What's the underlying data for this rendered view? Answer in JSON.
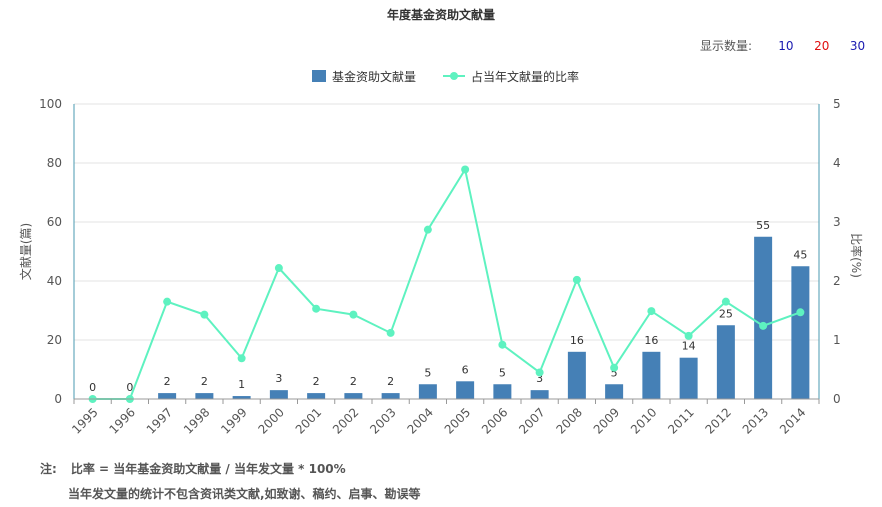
{
  "title": "年度基金资助文献量",
  "count_selector": {
    "label": "显示数量:",
    "options": [
      {
        "label": "10",
        "color": "#1a1ab0"
      },
      {
        "label": "20",
        "color": "#e01010"
      },
      {
        "label": "30",
        "color": "#1a1ab0"
      }
    ]
  },
  "notes": {
    "prefix": "注:",
    "line1": "比率 = 当年基金资助文献量 / 当年发文量 * 100%",
    "line2": "当年发文量的统计不包含资讯类文献,如致谢、稿约、启事、勘误等"
  },
  "chart_data": {
    "type": "bar",
    "categories": [
      "1995",
      "1996",
      "1997",
      "1998",
      "1999",
      "2000",
      "2001",
      "2002",
      "2003",
      "2004",
      "2005",
      "2006",
      "2007",
      "2008",
      "2009",
      "2010",
      "2011",
      "2012",
      "2013",
      "2014"
    ],
    "series": [
      {
        "name": "基金资助文献量",
        "kind": "bar",
        "axis": "left",
        "color": "#4580b6",
        "values": [
          0,
          0,
          2,
          2,
          1,
          3,
          2,
          2,
          2,
          5,
          6,
          5,
          3,
          16,
          5,
          16,
          14,
          25,
          55,
          45
        ]
      },
      {
        "name": "占当年文献量的比率",
        "kind": "line",
        "axis": "right",
        "color": "#5ef2c0",
        "values": [
          0,
          0,
          1.65,
          1.43,
          0.69,
          2.22,
          1.53,
          1.43,
          1.12,
          2.87,
          3.89,
          0.92,
          0.45,
          2.02,
          0.53,
          1.49,
          1.07,
          1.65,
          1.24,
          1.47
        ]
      }
    ],
    "ylabel_left": "文献量(篇)",
    "ylabel_right": "比率(%)",
    "ylim_left": [
      0,
      100
    ],
    "ylim_right": [
      0,
      5
    ],
    "yticks_left": [
      "0",
      "20",
      "40",
      "60",
      "80",
      "100"
    ],
    "yticks_right": [
      "0",
      "1",
      "2",
      "3",
      "4",
      "5"
    ],
    "grid": true,
    "legend_position": "top-center"
  }
}
